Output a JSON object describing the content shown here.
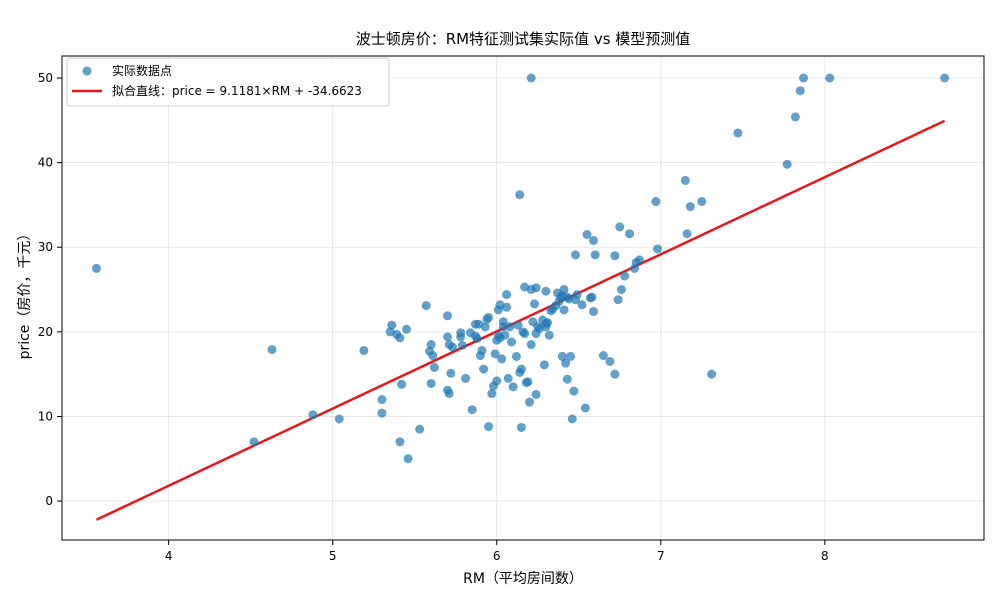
{
  "chart_data": {
    "type": "scatter",
    "title": "波士顿房价：RM特征测试集实际值 vs 模型预测值",
    "xlabel": "RM（平均房间数）",
    "ylabel": "price（房价，千元）",
    "xlim": [
      3.35,
      8.97
    ],
    "ylim": [
      -4.6,
      52.6
    ],
    "xticks": [
      4,
      5,
      6,
      7,
      8
    ],
    "yticks": [
      0,
      10,
      20,
      30,
      40,
      50
    ],
    "grid": true,
    "legend_position": "top-left",
    "series": [
      {
        "name": "实际数据点",
        "kind": "scatter",
        "color": "#1f77b4",
        "points": [
          [
            3.56,
            27.5
          ],
          [
            4.52,
            7.0
          ],
          [
            4.63,
            17.9
          ],
          [
            4.88,
            10.2
          ],
          [
            5.04,
            9.7
          ],
          [
            5.19,
            17.8
          ],
          [
            5.3,
            12.0
          ],
          [
            5.3,
            10.4
          ],
          [
            5.35,
            20.0
          ],
          [
            5.36,
            20.8
          ],
          [
            5.39,
            19.7
          ],
          [
            5.41,
            19.3
          ],
          [
            5.41,
            7.0
          ],
          [
            5.42,
            13.8
          ],
          [
            5.45,
            20.3
          ],
          [
            5.46,
            5.0
          ],
          [
            5.53,
            8.5
          ],
          [
            5.57,
            23.1
          ],
          [
            5.59,
            17.7
          ],
          [
            5.6,
            18.5
          ],
          [
            5.6,
            13.9
          ],
          [
            5.61,
            17.2
          ],
          [
            5.62,
            15.8
          ],
          [
            5.7,
            21.9
          ],
          [
            5.7,
            19.4
          ],
          [
            5.7,
            13.1
          ],
          [
            5.71,
            18.5
          ],
          [
            5.71,
            12.7
          ],
          [
            5.72,
            15.1
          ],
          [
            5.73,
            18.2
          ],
          [
            5.78,
            19.9
          ],
          [
            5.78,
            19.4
          ],
          [
            5.79,
            18.4
          ],
          [
            5.81,
            14.5
          ],
          [
            5.84,
            19.9
          ],
          [
            5.85,
            10.8
          ],
          [
            5.87,
            20.9
          ],
          [
            5.87,
            19.5
          ],
          [
            5.88,
            19.2
          ],
          [
            5.89,
            20.9
          ],
          [
            5.9,
            17.2
          ],
          [
            5.91,
            17.8
          ],
          [
            5.92,
            15.6
          ],
          [
            5.93,
            20.6
          ],
          [
            5.94,
            21.5
          ],
          [
            5.95,
            21.7
          ],
          [
            5.95,
            8.8
          ],
          [
            5.97,
            12.7
          ],
          [
            5.98,
            13.6
          ],
          [
            5.99,
            17.4
          ],
          [
            6.0,
            19.0
          ],
          [
            6.0,
            14.2
          ],
          [
            6.01,
            22.6
          ],
          [
            6.01,
            19.6
          ],
          [
            6.02,
            23.2
          ],
          [
            6.02,
            19.3
          ],
          [
            6.03,
            16.8
          ],
          [
            6.04,
            20.6
          ],
          [
            6.04,
            21.2
          ],
          [
            6.05,
            19.6
          ],
          [
            6.06,
            24.4
          ],
          [
            6.06,
            22.9
          ],
          [
            6.07,
            14.5
          ],
          [
            6.08,
            20.6
          ],
          [
            6.09,
            18.8
          ],
          [
            6.1,
            13.5
          ],
          [
            6.12,
            17.1
          ],
          [
            6.13,
            20.8
          ],
          [
            6.14,
            36.2
          ],
          [
            6.14,
            15.2
          ],
          [
            6.15,
            15.6
          ],
          [
            6.15,
            8.7
          ],
          [
            6.16,
            20.0
          ],
          [
            6.17,
            25.3
          ],
          [
            6.17,
            19.8
          ],
          [
            6.18,
            14.0
          ],
          [
            6.19,
            14.1
          ],
          [
            6.2,
            11.7
          ],
          [
            6.21,
            50.0
          ],
          [
            6.21,
            25.0
          ],
          [
            6.21,
            18.5
          ],
          [
            6.22,
            21.2
          ],
          [
            6.23,
            23.3
          ],
          [
            6.24,
            19.8
          ],
          [
            6.24,
            25.2
          ],
          [
            6.24,
            12.6
          ],
          [
            6.25,
            20.6
          ],
          [
            6.26,
            20.4
          ],
          [
            6.28,
            21.4
          ],
          [
            6.29,
            16.1
          ],
          [
            6.3,
            24.8
          ],
          [
            6.3,
            21.0
          ],
          [
            6.3,
            20.6
          ],
          [
            6.31,
            21.1
          ],
          [
            6.32,
            19.6
          ],
          [
            6.33,
            22.5
          ],
          [
            6.34,
            22.7
          ],
          [
            6.36,
            23.1
          ],
          [
            6.37,
            24.6
          ],
          [
            6.38,
            23.6
          ],
          [
            6.39,
            24.1
          ],
          [
            6.4,
            24.3
          ],
          [
            6.4,
            17.1
          ],
          [
            6.41,
            22.6
          ],
          [
            6.41,
            25.0
          ],
          [
            6.42,
            16.3
          ],
          [
            6.43,
            14.4
          ],
          [
            6.43,
            24.1
          ],
          [
            6.44,
            23.9
          ],
          [
            6.45,
            17.1
          ],
          [
            6.46,
            9.7
          ],
          [
            6.47,
            13.0
          ],
          [
            6.48,
            23.8
          ],
          [
            6.48,
            29.1
          ],
          [
            6.49,
            24.4
          ],
          [
            6.52,
            23.2
          ],
          [
            6.54,
            11.0
          ],
          [
            6.55,
            31.5
          ],
          [
            6.57,
            24.0
          ],
          [
            6.58,
            24.1
          ],
          [
            6.59,
            30.8
          ],
          [
            6.59,
            22.4
          ],
          [
            6.6,
            29.1
          ],
          [
            6.65,
            17.2
          ],
          [
            6.69,
            16.5
          ],
          [
            6.72,
            29.0
          ],
          [
            6.72,
            15.0
          ],
          [
            6.74,
            23.8
          ],
          [
            6.75,
            32.4
          ],
          [
            6.76,
            25.0
          ],
          [
            6.78,
            26.6
          ],
          [
            6.81,
            31.6
          ],
          [
            6.84,
            27.5
          ],
          [
            6.85,
            28.2
          ],
          [
            6.87,
            28.5
          ],
          [
            6.97,
            35.4
          ],
          [
            6.98,
            29.8
          ],
          [
            7.15,
            37.9
          ],
          [
            7.16,
            31.6
          ],
          [
            7.18,
            34.8
          ],
          [
            7.25,
            35.4
          ],
          [
            7.31,
            15.0
          ],
          [
            7.47,
            43.5
          ],
          [
            7.77,
            39.8
          ],
          [
            7.82,
            45.4
          ],
          [
            7.85,
            48.5
          ],
          [
            7.87,
            50.0
          ],
          [
            8.03,
            50.0
          ],
          [
            8.73,
            50.0
          ]
        ]
      },
      {
        "name": "拟合直线：price = 9.1181×RM + -34.6623",
        "kind": "line",
        "color": "#e8171b",
        "slope": 9.1181,
        "intercept": -34.6623,
        "x_range": [
          3.56,
          8.73
        ]
      }
    ]
  }
}
